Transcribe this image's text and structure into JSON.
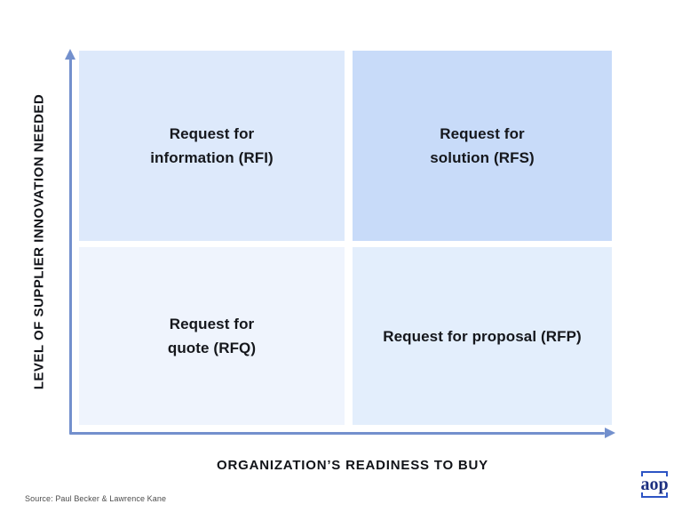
{
  "matrix": {
    "y_axis_label": "LEVEL OF SUPPLIER INNOVATION NEEDED",
    "x_axis_label": "ORGANIZATION’S READINESS TO BUY",
    "axis_color": "#7390cd",
    "quadrants": [
      {
        "position": "top-left",
        "lines": [
          "Request for",
          "information (RFI)"
        ],
        "bg": "#dde9fb"
      },
      {
        "position": "top-right",
        "lines": [
          "Request for",
          "solution (RFS)"
        ],
        "bg": "#c8dbf9"
      },
      {
        "position": "bottom-left",
        "lines": [
          "Request for",
          "quote (RFQ)"
        ],
        "bg": "#eff4fd"
      },
      {
        "position": "bottom-right",
        "lines": [
          "Request for proposal (RFP)"
        ],
        "bg": "#e3eefc"
      }
    ],
    "text_color": "#15171c"
  },
  "footer": {
    "source_label": "Source:  Paul Becker & Lawrence Kane",
    "logo_text": "aop",
    "logo_text_color": "#1c2f80",
    "logo_frame_color": "#2d54c4"
  }
}
